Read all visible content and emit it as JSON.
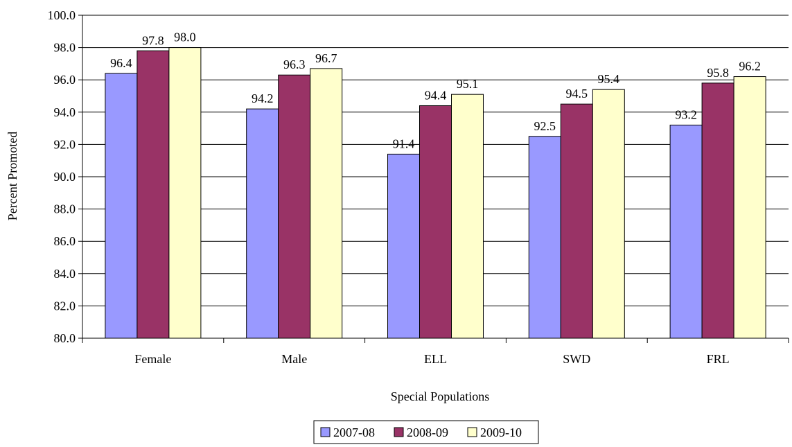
{
  "chart_data": {
    "type": "bar",
    "title": "",
    "xlabel": "Special Populations",
    "ylabel": "Percent Promoted",
    "ylim": [
      80,
      100
    ],
    "y_ticks": [
      "80.0",
      "82.0",
      "84.0",
      "86.0",
      "88.0",
      "90.0",
      "92.0",
      "94.0",
      "96.0",
      "98.0",
      "100.0"
    ],
    "grid": true,
    "legend_position": "bottom",
    "categories": [
      "Female",
      "Male",
      "ELL",
      "SWD",
      "FRL"
    ],
    "series": [
      {
        "name": "2007-08",
        "color": "#9999ff",
        "values": [
          96.4,
          94.2,
          91.4,
          92.5,
          93.2
        ],
        "labels": [
          "96.4",
          "94.2",
          "91.4",
          "92.5",
          "93.2"
        ]
      },
      {
        "name": "2008-09",
        "color": "#993366",
        "values": [
          97.8,
          96.3,
          94.4,
          94.5,
          95.8
        ],
        "labels": [
          "97.8",
          "96.3",
          "94.4",
          "94.5",
          "95.8"
        ]
      },
      {
        "name": "2009-10",
        "color": "#ffffcc",
        "values": [
          98.0,
          96.7,
          95.1,
          95.4,
          96.2
        ],
        "labels": [
          "98.0",
          "96.7",
          "95.1",
          "95.4",
          "96.2"
        ]
      }
    ]
  }
}
